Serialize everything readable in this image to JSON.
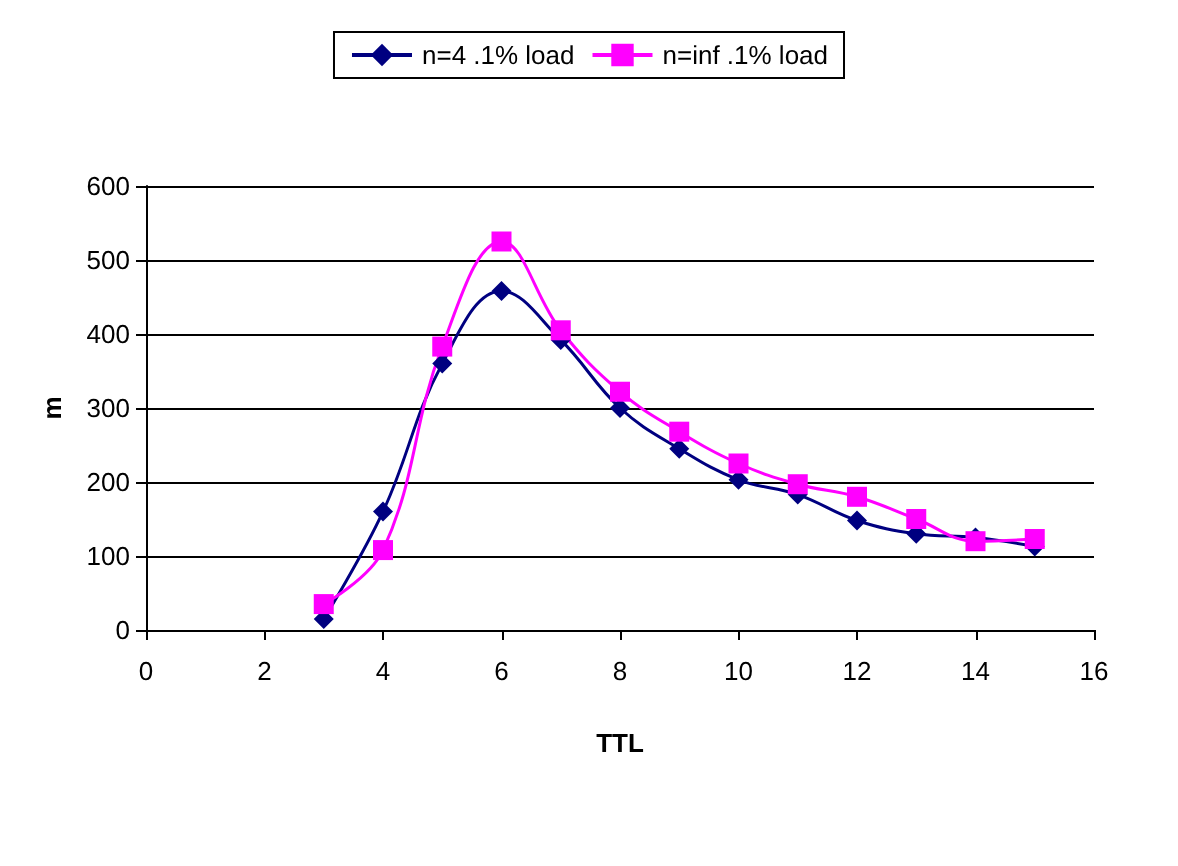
{
  "chart_data": {
    "type": "line",
    "xlabel": "TTL",
    "ylabel": "m",
    "x": [
      3,
      4,
      5,
      6,
      7,
      8,
      9,
      10,
      11,
      12,
      13,
      14,
      15
    ],
    "series": [
      {
        "name": "n=4 .1% load",
        "color": "#000080",
        "marker": "diamond",
        "values": [
          15,
          160,
          360,
          458,
          392,
          300,
          245,
          203,
          183,
          148,
          130,
          125,
          113
        ]
      },
      {
        "name": "n=inf .1% load",
        "color": "#ff00ff",
        "marker": "square",
        "values": [
          35,
          108,
          383,
          525,
          405,
          322,
          268,
          225,
          197,
          180,
          150,
          120,
          123
        ]
      }
    ],
    "xlim": [
      0,
      16
    ],
    "xticks": [
      0,
      2,
      4,
      6,
      8,
      10,
      12,
      14,
      16
    ],
    "ylim": [
      0,
      600
    ],
    "yticks": [
      0,
      100,
      200,
      300,
      400,
      500,
      600
    ],
    "grid": "y",
    "legend": "top"
  }
}
